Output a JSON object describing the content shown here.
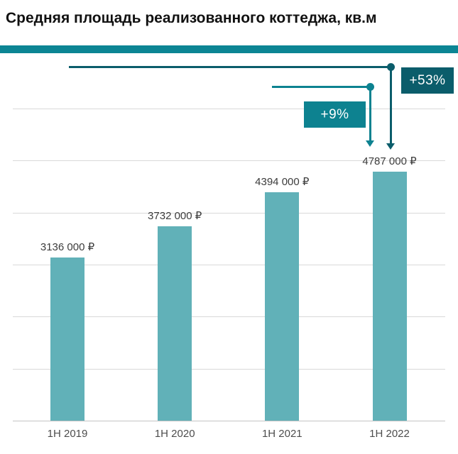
{
  "title": "Средняя площадь реализованного коттеджа, кв.м",
  "colors": {
    "accent_band": "#0C8594",
    "bar": "#61B1B8",
    "grid": "#D9D9D9",
    "axis": "#C4C4C4",
    "title_text": "#111111",
    "value_label_text": "#3C3C3C",
    "tick_label_text": "#4D4D4D",
    "annotation_teal": "#0D8290",
    "annotation_dark_teal": "#0B5D6B"
  },
  "chart_data": {
    "type": "bar",
    "title": "Средняя площадь реализованного коттеджа, кв.м",
    "categories": [
      "1H 2019",
      "1H 2020",
      "1H  2021",
      "1H 2022"
    ],
    "values": [
      3136000,
      3732000,
      4394000,
      4787000
    ],
    "value_labels": [
      "3136 000 ₽",
      "3732 000 ₽",
      "4394 000 ₽",
      "4787 000 ₽"
    ],
    "currency": "₽",
    "xlabel": "",
    "ylabel": "",
    "ylim": [
      0,
      6000000
    ],
    "gridline_interval": 1000000,
    "grid": true,
    "legend": false,
    "bar_color": "#61B1B8",
    "annotations": [
      {
        "id": "growth-9pct",
        "label": "+9%",
        "from_category": "1H  2021",
        "to_category": "1H 2022",
        "change_percent": 9,
        "color": "#0D8290"
      },
      {
        "id": "growth-53pct",
        "label": "+53%",
        "from_category": "1H 2019",
        "to_category": "1H 2022",
        "change_percent": 53,
        "color": "#0B5D6B"
      }
    ]
  }
}
